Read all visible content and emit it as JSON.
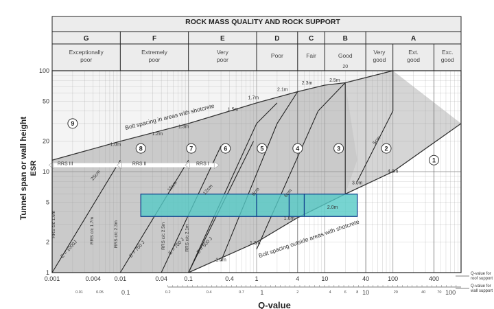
{
  "chart_data": {
    "type": "area",
    "title": "ROCK MASS QUALITY AND ROCK SUPPORT",
    "xlabel": "Q-value",
    "ylabel_line1": "Tunnel span or wall height",
    "ylabel_line2": "ESR",
    "x_scale": "log",
    "y_scale": "log",
    "xlim": [
      0.001,
      1000
    ],
    "ylim": [
      1,
      100
    ],
    "grid": true,
    "classes": [
      {
        "letter": "G",
        "label": "Exceptionally poor",
        "qmin": 0.001,
        "qmax": 0.01
      },
      {
        "letter": "F",
        "label": "Extremely poor",
        "qmin": 0.01,
        "qmax": 0.1
      },
      {
        "letter": "E",
        "label": "Very poor",
        "qmin": 0.1,
        "qmax": 1
      },
      {
        "letter": "D",
        "label": "Poor",
        "qmin": 1,
        "qmax": 4
      },
      {
        "letter": "C",
        "label": "Fair",
        "qmin": 4,
        "qmax": 10
      },
      {
        "letter": "B",
        "label": "Good",
        "sub": "20",
        "qmin": 10,
        "qmax": 40
      },
      {
        "letter": "A",
        "label": "Very good",
        "qmin": 40,
        "qmax": 100
      },
      {
        "letter": "",
        "label": "Ext. good",
        "qmin": 100,
        "qmax": 400
      },
      {
        "letter": "",
        "label": "Exc. good",
        "qmin": 400,
        "qmax": 1000
      }
    ],
    "group_a_range": [
      40,
      1000
    ],
    "x_ticks": [
      {
        "value": 0.001,
        "label": "0.001"
      },
      {
        "value": 0.004,
        "label": "0.004"
      },
      {
        "value": 0.01,
        "label": "0.01"
      },
      {
        "value": 0.04,
        "label": "0.04"
      },
      {
        "value": 0.1,
        "label": "0.1"
      },
      {
        "value": 0.4,
        "label": "0.4"
      },
      {
        "value": 1,
        "label": "1"
      },
      {
        "value": 4,
        "label": "4"
      },
      {
        "value": 10,
        "label": "10"
      },
      {
        "value": 40,
        "label": "40"
      },
      {
        "value": 100,
        "label": "100"
      },
      {
        "value": 400,
        "label": "400"
      }
    ],
    "y_ticks": [
      {
        "value": 1,
        "label": "1"
      },
      {
        "value": 2,
        "label": "2"
      },
      {
        "value": 5,
        "label": "5"
      },
      {
        "value": 10,
        "label": "10"
      },
      {
        "value": 20,
        "label": "20"
      },
      {
        "value": 50,
        "label": "50"
      },
      {
        "value": 100,
        "label": "100"
      }
    ],
    "wall_ticks": [
      {
        "value": 0.0025,
        "label": "0.01",
        "small": true
      },
      {
        "value": 0.005,
        "label": "0.05",
        "small": true
      },
      {
        "value": 0.012,
        "label": "0.1",
        "small": false
      },
      {
        "value": 0.05,
        "label": "0.2",
        "small": true
      },
      {
        "value": 0.2,
        "label": "0.4",
        "small": true
      },
      {
        "value": 0.6,
        "label": "0.7",
        "small": true
      },
      {
        "value": 1.2,
        "label": "1",
        "small": false
      },
      {
        "value": 4,
        "label": "2",
        "small": true
      },
      {
        "value": 12,
        "label": "4",
        "small": true
      },
      {
        "value": 20,
        "label": "6",
        "small": true
      },
      {
        "value": 30,
        "label": "8",
        "small": true
      },
      {
        "value": 40,
        "label": "10",
        "small": false
      },
      {
        "value": 110,
        "label": "20",
        "small": true
      },
      {
        "value": 280,
        "label": "40",
        "small": true
      },
      {
        "value": 480,
        "label": "70",
        "small": true
      },
      {
        "value": 700,
        "label": "100",
        "small": false
      }
    ],
    "side_notes": {
      "roof": [
        "Q-value for",
        "roof support"
      ],
      "wall": [
        "Q-value for",
        "wall support"
      ]
    },
    "regions": [
      {
        "id": "9",
        "label_at": [
          0.002,
          30
        ]
      },
      {
        "id": "8",
        "label_at": [
          0.02,
          17
        ]
      },
      {
        "id": "7",
        "label_at": [
          0.11,
          17
        ]
      },
      {
        "id": "6",
        "label_at": [
          0.35,
          17
        ]
      },
      {
        "id": "5",
        "label_at": [
          1.2,
          17
        ]
      },
      {
        "id": "4",
        "label_at": [
          4,
          17
        ]
      },
      {
        "id": "3",
        "label_at": [
          16,
          17
        ]
      },
      {
        "id": "2",
        "label_at": [
          80,
          17
        ]
      },
      {
        "id": "1",
        "label_at": [
          400,
          13
        ]
      }
    ],
    "bolt_line_top": [
      [
        0.001,
        13
      ],
      [
        0.01,
        20
      ],
      [
        0.1,
        30
      ],
      [
        1,
        48
      ],
      [
        4,
        62
      ],
      [
        10,
        72
      ],
      [
        20,
        76
      ],
      [
        100,
        100
      ]
    ],
    "bolt_line_bottom": [
      [
        0.1,
        1
      ],
      [
        1,
        2
      ],
      [
        4,
        3.5
      ],
      [
        20,
        6
      ],
      [
        100,
        10
      ],
      [
        1000,
        30
      ]
    ],
    "energy_lines": [
      {
        "name": "E = 1000J",
        "pts": [
          [
            0.001,
            1.0
          ],
          [
            0.01,
            13
          ]
        ]
      },
      {
        "name": "E = 700 J",
        "pts": [
          [
            0.01,
            1.0
          ],
          [
            0.1,
            13
          ]
        ]
      },
      {
        "name": "E = 700 J",
        "pts": [
          [
            0.04,
            1.0
          ],
          [
            0.3,
            18
          ]
        ]
      },
      {
        "name": "E = 500 J",
        "pts": [
          [
            0.1,
            1.0
          ],
          [
            0.9,
            20
          ]
        ]
      }
    ],
    "class_lines": [
      [
        [
          0.1,
          1
        ],
        [
          1,
          30
        ],
        [
          2,
          48
        ]
      ],
      [
        [
          0.3,
          1.3
        ],
        [
          2,
          30
        ],
        [
          4,
          62
        ]
      ],
      [
        [
          1,
          1.7
        ],
        [
          8,
          40
        ],
        [
          20,
          76
        ]
      ]
    ],
    "annotations": [
      {
        "text": "Bolt spacing in areas with shotcrete",
        "at": [
          0.012,
          26
        ],
        "angle": -14
      },
      {
        "text": "Bolt spacing outside areas with shotcrete",
        "at": [
          1.1,
          1.4
        ],
        "angle": -19
      },
      {
        "text": "1.0m",
        "at": [
          0.0085,
          18
        ]
      },
      {
        "text": "1.2m",
        "at": [
          0.035,
          23
        ]
      },
      {
        "text": "1.3m",
        "at": [
          0.085,
          27
        ]
      },
      {
        "text": "1.5m",
        "at": [
          0.45,
          40
        ]
      },
      {
        "text": "1.7m",
        "at": [
          0.9,
          52
        ]
      },
      {
        "text": "2.1m",
        "at": [
          2.4,
          63
        ]
      },
      {
        "text": "2.3m",
        "at": [
          5.5,
          73
        ]
      },
      {
        "text": "2.5m",
        "at": [
          14,
          78
        ]
      },
      {
        "text": "1.3m",
        "at": [
          0.95,
          1.9
        ]
      },
      {
        "text": "1.6m",
        "at": [
          3,
          3.35
        ]
      },
      {
        "text": "2.0m",
        "at": [
          13,
          4.3
        ]
      },
      {
        "text": "3.0m",
        "at": [
          30,
          7.5
        ]
      },
      {
        "text": "4.0m",
        "at": [
          100,
          9.8
        ]
      },
      {
        "text": "1.0m",
        "at": [
          0.3,
          1.3
        ]
      },
      {
        "text": "5cm",
        "at": [
          60,
          20
        ]
      },
      {
        "text": "RRS III",
        "at": [
          0.0012,
          11.6
        ]
      },
      {
        "text": "RRS II",
        "at": [
          0.015,
          11.6
        ]
      },
      {
        "text": "RRS I",
        "at": [
          0.13,
          11.6
        ]
      },
      {
        "text": "RRS c/c 1.6m",
        "at": [
          0.0011,
          3
        ]
      },
      {
        "text": "RRS c/c 1.7m",
        "at": [
          0.004,
          2.6
        ]
      },
      {
        "text": "RRS c/c 2.3m",
        "at": [
          0.009,
          2.4
        ]
      },
      {
        "text": "RRS c/c 2.5m",
        "at": [
          0.045,
          2.3
        ]
      },
      {
        "text": "RRS c/c 2.1m",
        "at": [
          0.1,
          2.2
        ]
      },
      {
        "text": "25cm",
        "at": [
          0.0045,
          9
        ]
      },
      {
        "text": "15cm",
        "at": [
          0.06,
          7
        ]
      },
      {
        "text": "12cm",
        "at": [
          0.2,
          6.5
        ]
      },
      {
        "text": "9cm",
        "at": [
          1,
          6.2
        ]
      },
      {
        "text": "6cm",
        "at": [
          3,
          6
        ]
      }
    ],
    "highlight_box": {
      "xmin": 0.02,
      "xmax": 30,
      "ymin": 3.6,
      "ymax": 6,
      "dividers": [
        1,
        3,
        5
      ]
    }
  },
  "colors": {
    "grid": "#9a9a9a",
    "frame": "#222222",
    "shade_dark": "#b8b8b8",
    "shade_light": "#d9d9d9",
    "highlight_fill": "#55c9c6",
    "highlight_stroke": "#0f3f8c",
    "header_bg": "#ececec"
  }
}
